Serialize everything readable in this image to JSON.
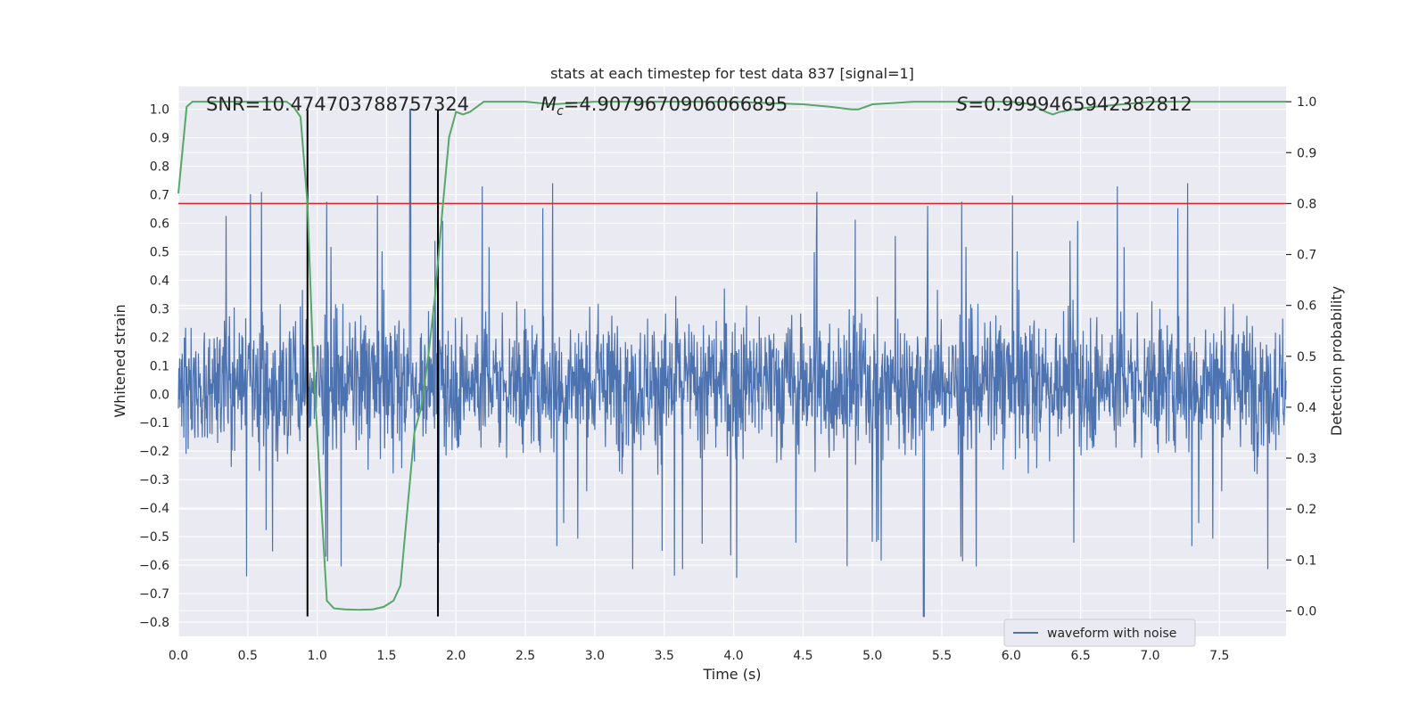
{
  "chart_data": {
    "type": "line",
    "title": "stats at each timestep for test data 837 [signal=1]",
    "xlabel": "Time (s)",
    "ylabel": "Whitened strain",
    "y2label": "Detection probability",
    "xlim": [
      0.0,
      7.98
    ],
    "ylim": [
      -0.85,
      1.08
    ],
    "y2lim": [
      -0.05,
      1.03
    ],
    "xticks": [
      "0.0",
      "0.5",
      "1.0",
      "1.5",
      "2.0",
      "2.5",
      "3.0",
      "3.5",
      "4.0",
      "4.5",
      "5.0",
      "5.5",
      "6.0",
      "6.5",
      "7.0",
      "7.5"
    ],
    "yticks": [
      "-0.8",
      "-0.7",
      "-0.6",
      "-0.5",
      "-0.4",
      "-0.3",
      "-0.2",
      "-0.1",
      "0.0",
      "0.1",
      "0.2",
      "0.3",
      "0.4",
      "0.5",
      "0.6",
      "0.7",
      "0.8",
      "0.9",
      "1.0"
    ],
    "y2ticks": [
      "0.0",
      "0.1",
      "0.2",
      "0.3",
      "0.4",
      "0.5",
      "0.6",
      "0.7",
      "0.8",
      "0.9",
      "1.0"
    ],
    "grid": true,
    "legend": {
      "position": "lower-right",
      "entries": [
        "waveform with noise"
      ]
    },
    "annotations": {
      "snr": "SNR=10.474703788757324",
      "mc_symbol": "M",
      "mc_sub": "c",
      "mc_value": "=4.9079670906066895",
      "s_symbol": "S",
      "s_value": "=0.9999465942382812"
    },
    "threshold": {
      "y2": 0.8,
      "color": "#d62728"
    },
    "vlines": [
      0.93,
      1.87
    ],
    "vline_range": [
      -0.78,
      1.0
    ],
    "series": [
      {
        "name": "waveform with noise",
        "axis": "left",
        "color": "#4c72b0",
        "style": "dense noise band roughly -0.55 to 0.65 with sparse spikes",
        "peak_high": 1.0,
        "peak_low": -0.78
      },
      {
        "axis": "right",
        "color": "#55a868",
        "x": [
          0.0,
          0.06,
          0.1,
          0.2,
          0.4,
          0.6,
          0.78,
          0.83,
          0.88,
          0.93,
          0.97,
          1.02,
          1.07,
          1.12,
          1.2,
          1.3,
          1.4,
          1.48,
          1.55,
          1.6,
          1.65,
          1.7,
          1.75,
          1.8,
          1.85,
          1.9,
          1.95,
          2.0,
          2.05,
          2.1,
          2.15,
          2.2,
          2.3,
          2.5,
          2.7,
          3.0,
          3.5,
          4.0,
          4.5,
          4.7,
          4.85,
          4.9,
          5.0,
          5.3,
          6.0,
          6.15,
          6.25,
          6.3,
          6.35,
          6.45,
          6.6,
          7.0,
          7.5,
          7.98
        ],
        "y": [
          0.82,
          0.99,
          1.0,
          1.0,
          1.0,
          1.0,
          1.0,
          0.99,
          0.97,
          0.8,
          0.5,
          0.25,
          0.02,
          0.005,
          0.003,
          0.002,
          0.003,
          0.008,
          0.02,
          0.05,
          0.2,
          0.35,
          0.4,
          0.5,
          0.62,
          0.78,
          0.93,
          0.98,
          0.975,
          0.98,
          0.99,
          1.0,
          1.0,
          1.0,
          0.995,
          1.0,
          1.0,
          1.0,
          0.995,
          0.99,
          0.985,
          0.985,
          0.995,
          1.0,
          1.0,
          0.995,
          0.98,
          0.975,
          0.98,
          0.985,
          0.99,
          1.0,
          1.0,
          1.0
        ]
      }
    ]
  }
}
